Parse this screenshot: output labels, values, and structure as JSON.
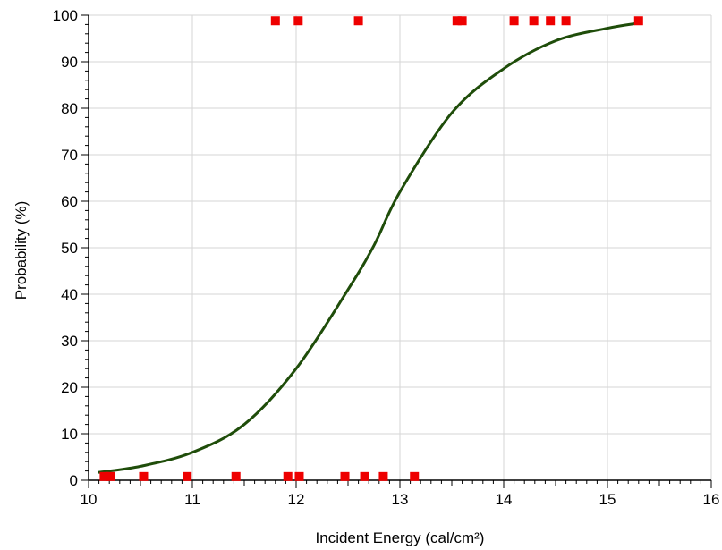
{
  "chart_data": {
    "type": "scatter",
    "title": "",
    "xlabel": "Incident Energy (cal/cm²)",
    "ylabel": "Probability (%)",
    "xlim": [
      10,
      16
    ],
    "ylim": [
      0,
      100
    ],
    "x_ticks": [
      10,
      11,
      12,
      13,
      14,
      15,
      16
    ],
    "y_ticks": [
      0,
      10,
      20,
      30,
      40,
      50,
      60,
      70,
      80,
      90,
      100
    ],
    "x_tick_labels": [
      "10",
      "11",
      "12",
      "13",
      "14",
      "15",
      "16"
    ],
    "y_tick_labels": [
      "0",
      "10",
      "20",
      "30",
      "40",
      "50",
      "60",
      "70",
      "80",
      "90",
      "100"
    ],
    "grid": true,
    "legend": "none",
    "colors": {
      "points": "#ee0000",
      "curve": "#1f4d0a",
      "grid": "#d6d6d6",
      "axis": "#000000"
    },
    "series": [
      {
        "type": "scatter",
        "marker": "square",
        "x": [
          11.8,
          12.02,
          12.6,
          13.55,
          13.6,
          14.1,
          14.29,
          14.45,
          14.6,
          15.3
        ],
        "y": [
          98.8,
          98.8,
          98.8,
          98.8,
          98.8,
          98.8,
          98.8,
          98.8,
          98.8,
          98.8
        ]
      },
      {
        "type": "scatter",
        "marker": "square",
        "x": [
          10.15,
          10.21,
          10.53,
          10.95,
          11.42,
          11.92,
          12.03,
          12.47,
          12.66,
          12.84,
          13.14
        ],
        "y": [
          0.8,
          0.8,
          0.8,
          0.8,
          0.8,
          0.8,
          0.8,
          0.8,
          0.8,
          0.8,
          0.8
        ]
      },
      {
        "type": "line",
        "x": [
          10.1,
          10.5,
          11.0,
          11.5,
          12.0,
          12.5,
          12.75,
          13.0,
          13.5,
          14.0,
          14.5,
          15.0,
          15.3
        ],
        "y": [
          1.7,
          3.0,
          6.0,
          12.0,
          24.0,
          41.0,
          50.5,
          62.0,
          79.0,
          88.5,
          94.5,
          97.2,
          98.3
        ]
      }
    ]
  }
}
